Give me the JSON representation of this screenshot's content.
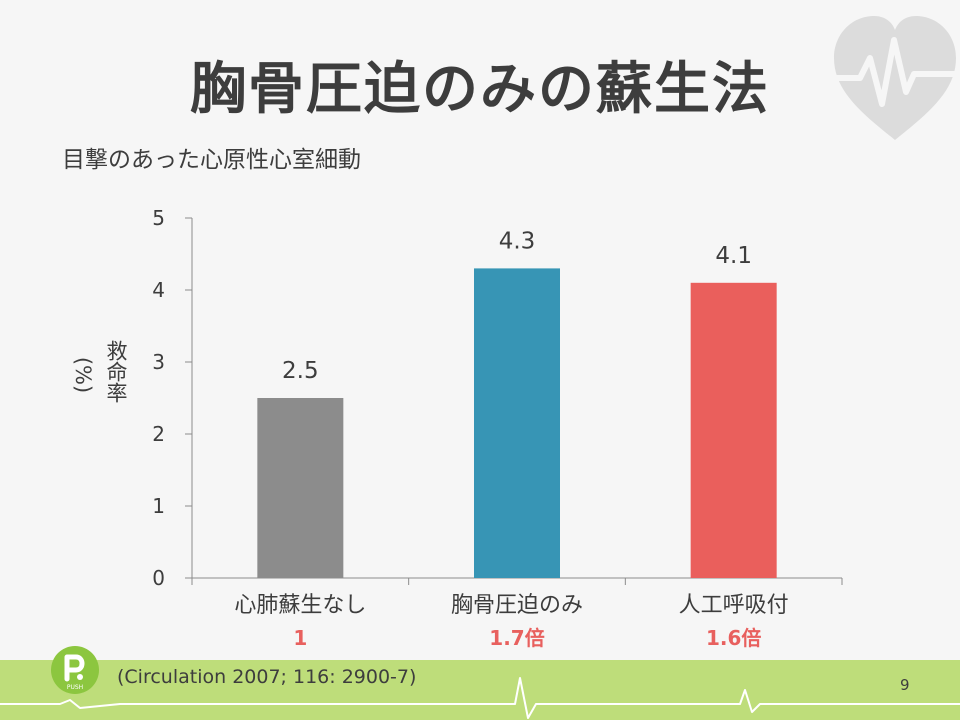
{
  "slide": {
    "title": "胸骨圧迫のみの蘇生法",
    "subtitle": "目撃のあった心原性心室細動",
    "citation": "(Circulation  2007; 116:  2900-7)",
    "page_number": "9",
    "logo_text": "PUSH",
    "ylabel_main": "救命率",
    "ylabel_unit": "(%)"
  },
  "chart_data": {
    "type": "bar",
    "categories": [
      "心肺蘇生なし",
      "胸骨圧迫のみ",
      "人工呼吸付"
    ],
    "values": [
      2.5,
      4.3,
      4.1
    ],
    "value_labels": [
      "2.5",
      "4.3",
      "4.1"
    ],
    "ratios": [
      "1",
      "1.7倍",
      "1.6倍"
    ],
    "colors": [
      "#8c8c8c",
      "#3795b5",
      "#ea5f5c"
    ],
    "ratio_color": "#e8605e",
    "ylim": [
      0,
      5
    ],
    "yticks": [
      0,
      1,
      2,
      3,
      4,
      5
    ],
    "ylabel": "救命率 (%)",
    "grid": false
  },
  "theme": {
    "footer_green": "#bedd7a",
    "heart_color": "#dcdcdc",
    "text_color": "#3d3d3d"
  }
}
